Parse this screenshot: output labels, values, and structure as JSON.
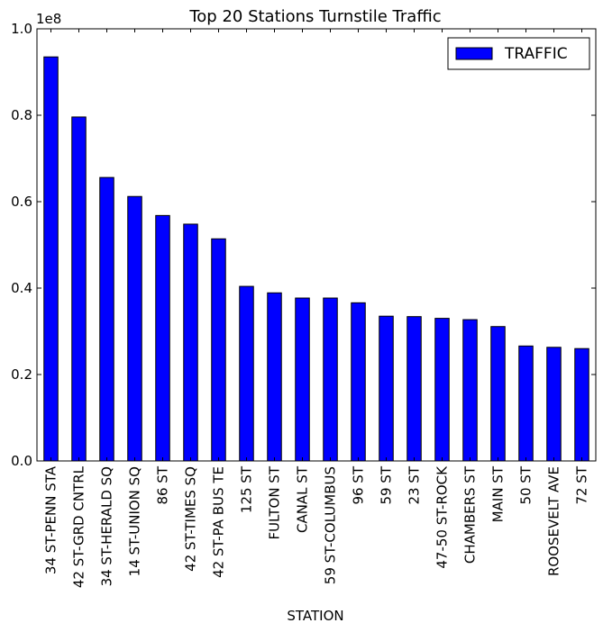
{
  "chart_data": {
    "type": "bar",
    "title": "Top 20 Stations Turnstile Traffic",
    "xlabel": "STATION",
    "ylabel": "",
    "y_multiplier_label": "1e8",
    "ylim": [
      0,
      1.0
    ],
    "yticks": [
      "0.0",
      "0.2",
      "0.4",
      "0.6",
      "0.8",
      "1.0"
    ],
    "legend": {
      "position": "top-right"
    },
    "categories": [
      "34 ST-PENN STA",
      "42 ST-GRD CNTRL",
      "34 ST-HERALD SQ",
      "14 ST-UNION SQ",
      "86 ST",
      "42 ST-TIMES SQ",
      "42 ST-PA BUS TE",
      "125 ST",
      "FULTON ST",
      "CANAL ST",
      "59 ST-COLUMBUS",
      "96 ST",
      "59 ST",
      "23 ST",
      "47-50 ST-ROCK",
      "CHAMBERS ST",
      "MAIN ST",
      "50 ST",
      "ROOSEVELT AVE",
      "72 ST"
    ],
    "series": [
      {
        "name": "TRAFFIC",
        "color": "#0000ff",
        "values": [
          0.935,
          0.796,
          0.656,
          0.612,
          0.568,
          0.548,
          0.514,
          0.404,
          0.389,
          0.377,
          0.377,
          0.366,
          0.335,
          0.334,
          0.33,
          0.327,
          0.311,
          0.266,
          0.263,
          0.26
        ]
      }
    ]
  }
}
